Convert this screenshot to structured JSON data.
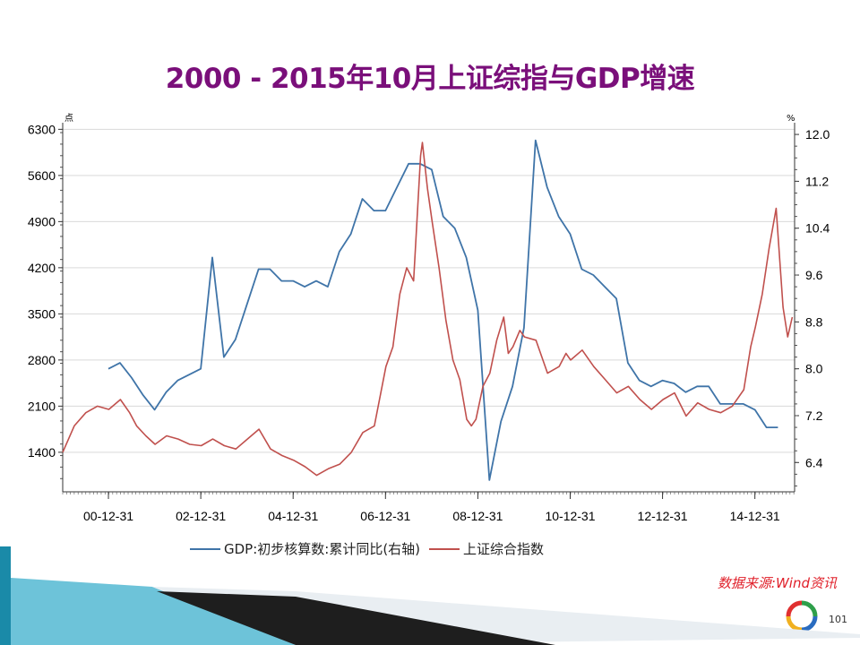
{
  "slide": {
    "title": "2000 - 2015年10月上证综指与GDP增速",
    "source": "数据来源:Wind资讯",
    "page_number": "101",
    "accent_title_color": "#7a0f7a",
    "source_color": "#e0202a"
  },
  "chart_data": {
    "type": "line",
    "left_axis_unit": "点",
    "right_axis_unit": "%",
    "left_ticks": [
      1400,
      2100,
      2800,
      3500,
      4200,
      4900,
      5600,
      6300
    ],
    "left_tick_labels": [
      "1400",
      "2100",
      "2800",
      "3500",
      "4200",
      "4900",
      "5600",
      "6300"
    ],
    "right_ticks": [
      6.4,
      7.2,
      8.0,
      8.8,
      9.6,
      10.4,
      11.2,
      12.0
    ],
    "right_tick_labels": [
      "6.4",
      "7.2",
      "8.0",
      "8.8",
      "9.6",
      "10.4",
      "11.2",
      "12.0"
    ],
    "ylim_left": [
      800,
      6400
    ],
    "ylim_right": [
      5.9,
      12.2
    ],
    "xlim": [
      2000.0,
      2015.85
    ],
    "x_tick_labels": [
      "00-12-31",
      "02-12-31",
      "04-12-31",
      "06-12-31",
      "08-12-31",
      "10-12-31",
      "12-12-31",
      "14-12-31"
    ],
    "x_tick_values": [
      2000.99,
      2002.99,
      2004.99,
      2006.99,
      2008.99,
      2010.99,
      2012.99,
      2014.99
    ],
    "grid": "horizontal",
    "legend_position": "bottom",
    "series": [
      {
        "name": "GDP:初步核算数:累计同比(右轴)",
        "axis": "right",
        "color": "#3f74a8",
        "x": [
          2000.99,
          2001.24,
          2001.49,
          2001.74,
          2001.99,
          2002.24,
          2002.49,
          2002.74,
          2002.99,
          2003.24,
          2003.49,
          2003.74,
          2003.99,
          2004.24,
          2004.49,
          2004.74,
          2004.99,
          2005.24,
          2005.49,
          2005.74,
          2005.99,
          2006.24,
          2006.49,
          2006.74,
          2006.99,
          2007.24,
          2007.49,
          2007.74,
          2007.99,
          2008.24,
          2008.49,
          2008.74,
          2008.99,
          2009.24,
          2009.49,
          2009.74,
          2009.99,
          2010.24,
          2010.49,
          2010.74,
          2010.99,
          2011.24,
          2011.49,
          2011.74,
          2011.99,
          2012.24,
          2012.49,
          2012.74,
          2012.99,
          2013.24,
          2013.49,
          2013.74,
          2013.99,
          2014.24,
          2014.49,
          2014.74,
          2014.99,
          2015.24,
          2015.49
        ],
        "values": [
          8.0,
          8.1,
          7.85,
          7.55,
          7.3,
          7.6,
          7.8,
          7.9,
          8.0,
          9.9,
          8.2,
          8.5,
          9.1,
          9.7,
          9.7,
          9.5,
          9.5,
          9.4,
          9.5,
          9.4,
          10.0,
          10.3,
          10.9,
          10.7,
          10.7,
          11.1,
          11.5,
          11.5,
          11.4,
          10.6,
          10.4,
          9.9,
          9.0,
          6.1,
          7.1,
          7.7,
          8.7,
          11.9,
          11.1,
          10.6,
          10.3,
          9.7,
          9.6,
          9.4,
          9.2,
          8.1,
          7.8,
          7.7,
          7.8,
          7.75,
          7.6,
          7.7,
          7.7,
          7.4,
          7.4,
          7.4,
          7.3,
          7.0,
          7.0
        ]
      },
      {
        "name": "上证综合指数",
        "axis": "left",
        "color": "#c0504d",
        "x": [
          2000.0,
          2000.25,
          2000.5,
          2000.75,
          2001.0,
          2001.25,
          2001.45,
          2001.6,
          2001.8,
          2002.0,
          2002.25,
          2002.5,
          2002.75,
          2003.0,
          2003.25,
          2003.5,
          2003.75,
          2004.0,
          2004.25,
          2004.5,
          2004.75,
          2005.0,
          2005.25,
          2005.5,
          2005.75,
          2006.0,
          2006.25,
          2006.5,
          2006.75,
          2007.0,
          2007.15,
          2007.3,
          2007.45,
          2007.6,
          2007.75,
          2007.79,
          2007.9,
          2008.0,
          2008.15,
          2008.3,
          2008.45,
          2008.6,
          2008.75,
          2008.85,
          2008.95,
          2009.1,
          2009.25,
          2009.4,
          2009.55,
          2009.65,
          2009.75,
          2009.9,
          2010.0,
          2010.25,
          2010.5,
          2010.75,
          2010.9,
          2011.0,
          2011.25,
          2011.5,
          2011.75,
          2012.0,
          2012.25,
          2012.5,
          2012.75,
          2013.0,
          2013.25,
          2013.5,
          2013.75,
          2014.0,
          2014.25,
          2014.5,
          2014.75,
          2014.9,
          2015.0,
          2015.15,
          2015.3,
          2015.45,
          2015.6,
          2015.7,
          2015.8
        ],
        "values": [
          1400,
          1800,
          2000,
          2100,
          2050,
          2200,
          2000,
          1800,
          1650,
          1520,
          1650,
          1600,
          1520,
          1500,
          1600,
          1500,
          1450,
          1600,
          1750,
          1450,
          1350,
          1280,
          1180,
          1050,
          1150,
          1220,
          1400,
          1700,
          1800,
          2700,
          3000,
          3800,
          4200,
          4000,
          5900,
          6100,
          5400,
          4900,
          4200,
          3400,
          2800,
          2500,
          1900,
          1800,
          1900,
          2400,
          2600,
          3100,
          3450,
          2900,
          3000,
          3250,
          3150,
          3100,
          2600,
          2700,
          2900,
          2800,
          2950,
          2700,
          2500,
          2300,
          2400,
          2200,
          2050,
          2200,
          2300,
          1950,
          2150,
          2050,
          2000,
          2100,
          2350,
          3000,
          3300,
          3800,
          4500,
          5100,
          3600,
          3150,
          3450
        ]
      }
    ]
  }
}
